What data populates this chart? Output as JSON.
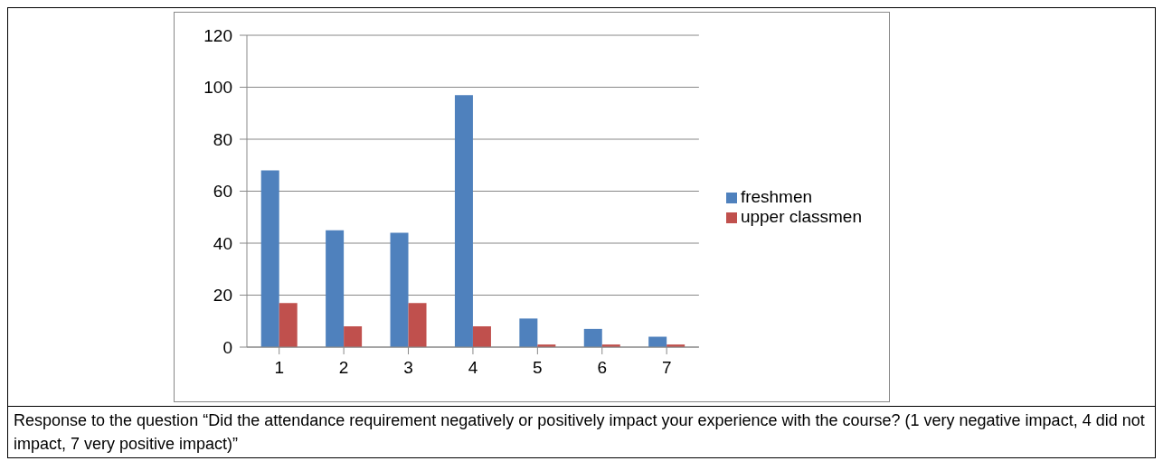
{
  "chart_data": {
    "type": "bar",
    "categories": [
      "1",
      "2",
      "3",
      "4",
      "5",
      "6",
      "7"
    ],
    "series": [
      {
        "name": "freshmen",
        "color": "#4f81bd",
        "values": [
          68,
          45,
          44,
          97,
          11,
          7,
          4
        ]
      },
      {
        "name": "upper classmen",
        "color": "#c0504d",
        "values": [
          17,
          8,
          17,
          8,
          1,
          1,
          1
        ]
      }
    ],
    "ylim": [
      0,
      120
    ],
    "yticks": [
      0,
      20,
      40,
      60,
      80,
      100,
      120
    ],
    "grid": "y",
    "legend": "right",
    "annotations": [
      "Response to the question “Did the attendance requirement negatively or positively impact your experience with the course? (1 very negative impact, 4 did not impact, 7 very positive impact)”"
    ]
  }
}
